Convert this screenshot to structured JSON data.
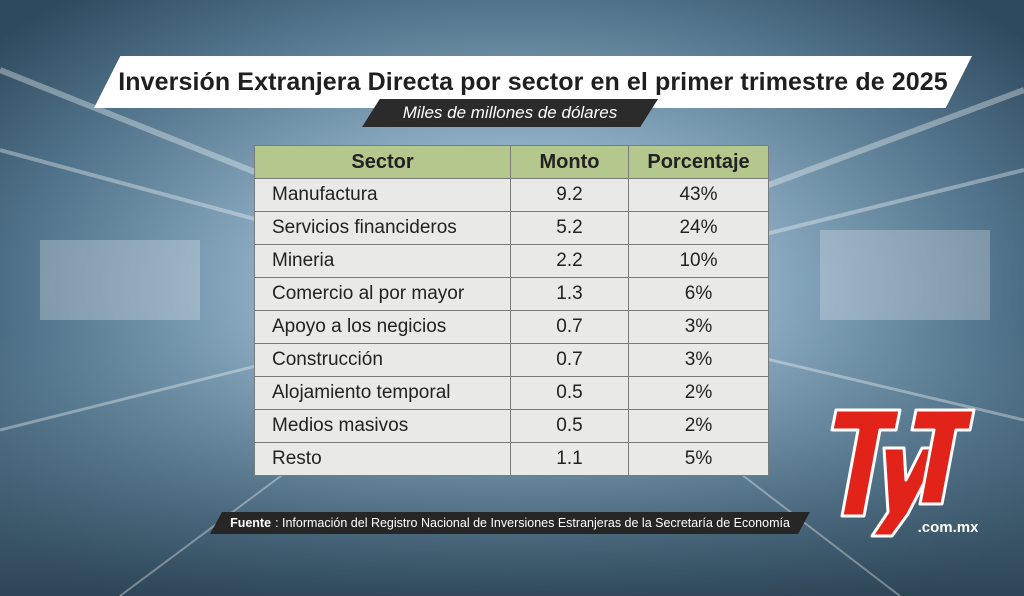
{
  "chart_data": {
    "type": "table",
    "title": "Inversión Extranjera Directa por sector en el primer trimestre de 2025",
    "subtitle": "Miles de millones de dólares",
    "columns": [
      "Sector",
      "Monto",
      "Porcentaje"
    ],
    "rows": [
      {
        "sector": "Manufactura",
        "monto": "9.2",
        "porcentaje": "43%"
      },
      {
        "sector": "Servicios financideros",
        "monto": "5.2",
        "porcentaje": "24%"
      },
      {
        "sector": "Mineria",
        "monto": "2.2",
        "porcentaje": "10%"
      },
      {
        "sector": "Comercio al por mayor",
        "monto": "1.3",
        "porcentaje": "6%"
      },
      {
        "sector": "Apoyo a los negicios",
        "monto": "0.7",
        "porcentaje": "3%"
      },
      {
        "sector": "Construcción",
        "monto": "0.7",
        "porcentaje": "3%"
      },
      {
        "sector": "Alojamiento temporal",
        "monto": "0.5",
        "porcentaje": "2%"
      },
      {
        "sector": "Medios masivos",
        "monto": "0.5",
        "porcentaje": "2%"
      },
      {
        "sector": "Resto",
        "monto": "1.1",
        "porcentaje": "5%"
      }
    ]
  },
  "source": {
    "label": "Fuente",
    "text": ": Información del Registro Nacional de Inversiones Estranjeras de la Secretaría de Economía"
  },
  "logo": {
    "letters": "TyT",
    "domain": ".com.mx",
    "color": "#e2231a"
  }
}
